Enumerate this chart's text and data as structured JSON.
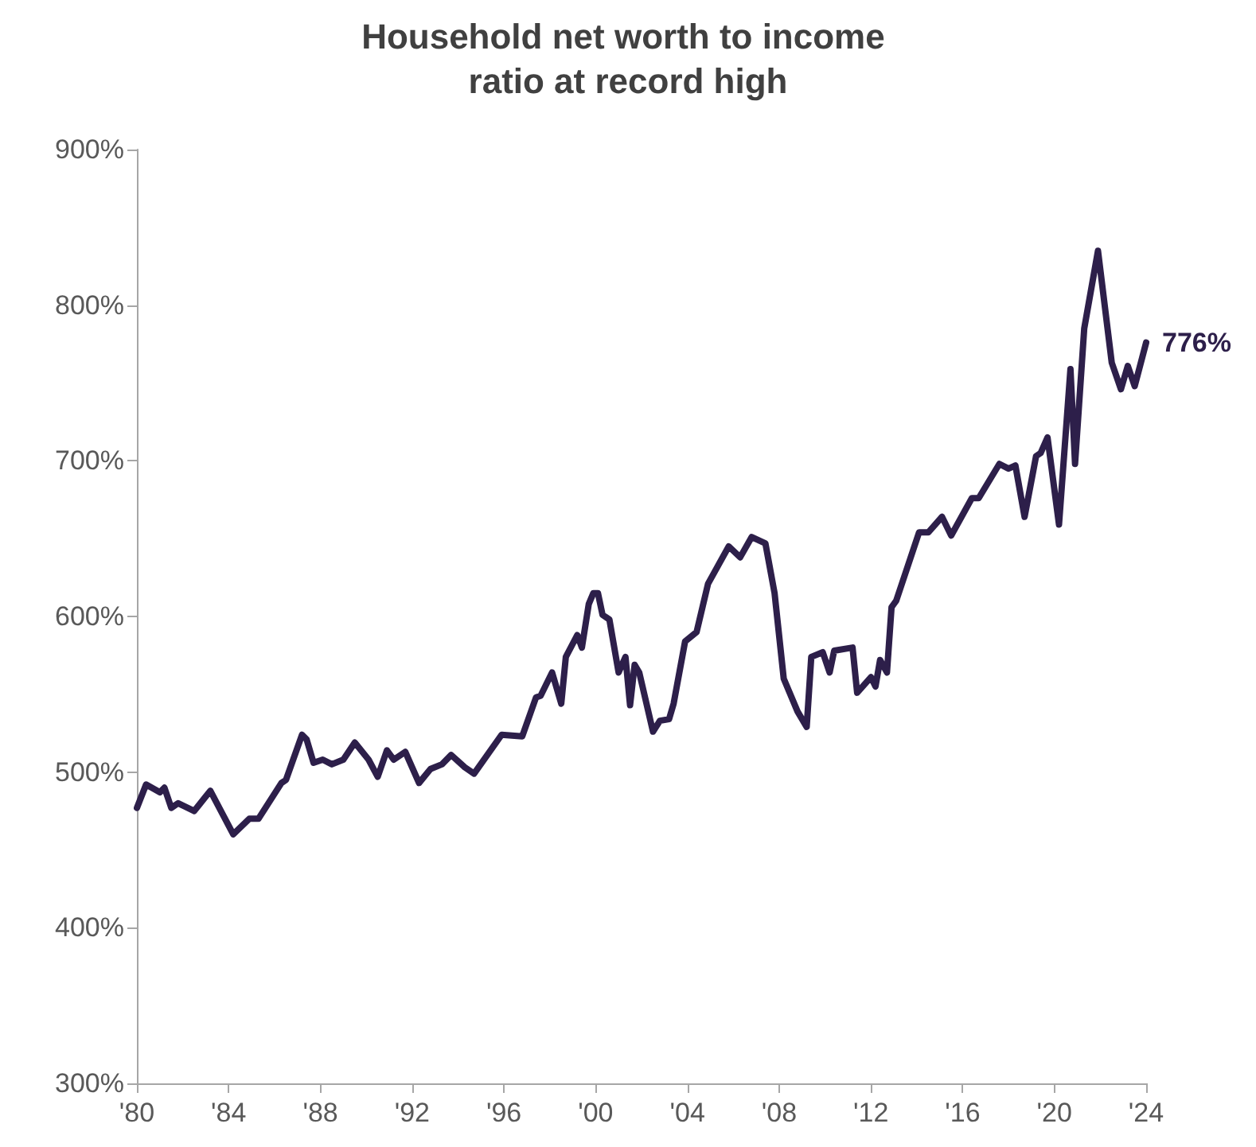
{
  "chart_data": {
    "type": "line",
    "title": "Household net worth to income ratio at record high",
    "x": [
      1980.0,
      1980.4,
      1981.0,
      1981.2,
      1981.5,
      1981.8,
      1982.5,
      1983.2,
      1984.2,
      1984.9,
      1985.3,
      1986.3,
      1986.5,
      1987.2,
      1987.4,
      1987.7,
      1988.1,
      1988.5,
      1989.0,
      1989.5,
      1990.1,
      1990.5,
      1990.9,
      1991.2,
      1991.7,
      1992.3,
      1992.8,
      1993.3,
      1993.7,
      1994.3,
      1994.7,
      1995.9,
      1996.8,
      1997.4,
      1997.6,
      1998.1,
      1998.5,
      1998.7,
      1999.2,
      1999.4,
      1999.7,
      1999.9,
      2000.1,
      2000.3,
      2000.6,
      2001.0,
      2001.3,
      2001.5,
      2001.7,
      2001.9,
      2002.5,
      2002.8,
      2003.2,
      2003.4,
      2003.9,
      2004.4,
      2004.9,
      2005.8,
      2006.3,
      2006.8,
      2007.4,
      2007.8,
      2008.2,
      2008.8,
      2009.2,
      2009.4,
      2009.9,
      2010.2,
      2010.4,
      2011.2,
      2011.4,
      2012.0,
      2012.2,
      2012.4,
      2012.7,
      2012.9,
      2013.1,
      2014.1,
      2014.5,
      2015.1,
      2015.5,
      2016.4,
      2016.7,
      2017.6,
      2018.0,
      2018.3,
      2018.7,
      2019.2,
      2019.4,
      2019.7,
      2020.2,
      2020.7,
      2020.9,
      2021.3,
      2021.9,
      2022.5,
      2022.9,
      2023.2,
      2023.5,
      2024.0
    ],
    "series": [
      {
        "color": "#2d1f4a",
        "values": [
          477,
          492,
          487,
          490,
          477,
          480,
          475,
          488,
          460,
          470,
          470,
          493,
          495,
          524,
          521,
          506,
          508,
          505,
          508,
          519,
          508,
          497,
          514,
          508,
          513,
          493,
          502,
          505,
          511,
          503,
          499,
          524,
          523,
          548,
          549,
          564,
          544,
          574,
          588,
          580,
          608,
          615,
          615,
          601,
          598,
          564,
          574,
          543,
          569,
          564,
          526,
          533,
          534,
          544,
          584,
          590,
          621,
          645,
          638,
          651,
          647,
          615,
          560,
          539,
          529,
          574,
          577,
          564,
          578,
          580,
          551,
          561,
          555,
          572,
          564,
          606,
          610,
          654,
          654,
          664,
          652,
          676,
          676,
          698,
          695,
          697,
          664,
          703,
          705,
          715,
          659,
          759,
          698,
          785,
          835,
          763,
          746,
          761,
          748,
          776
        ]
      }
    ],
    "xlim": [
      1980,
      2024
    ],
    "xticks": [
      {
        "value": 1980,
        "label": "'80"
      },
      {
        "value": 1984,
        "label": "'84"
      },
      {
        "value": 1988,
        "label": "'88"
      },
      {
        "value": 1992,
        "label": "'92"
      },
      {
        "value": 1996,
        "label": "'96"
      },
      {
        "value": 2000,
        "label": "'00"
      },
      {
        "value": 2004,
        "label": "'04"
      },
      {
        "value": 2008,
        "label": "'08"
      },
      {
        "value": 2012,
        "label": "'12"
      },
      {
        "value": 2016,
        "label": "'16"
      },
      {
        "value": 2020,
        "label": "'20"
      },
      {
        "value": 2024,
        "label": "'24"
      }
    ],
    "ylim": [
      300,
      900
    ],
    "yticks": [
      {
        "value": 300,
        "label": "300%"
      },
      {
        "value": 400,
        "label": "400%"
      },
      {
        "value": 500,
        "label": "500%"
      },
      {
        "value": 600,
        "label": "600%"
      },
      {
        "value": 700,
        "label": "700%"
      },
      {
        "value": 800,
        "label": "800%"
      },
      {
        "value": 900,
        "label": "900%"
      }
    ],
    "annotations": [
      {
        "text": "776%",
        "x": 2024,
        "y": 776
      }
    ],
    "grid": false,
    "marker": "none",
    "line_style": "solid"
  }
}
